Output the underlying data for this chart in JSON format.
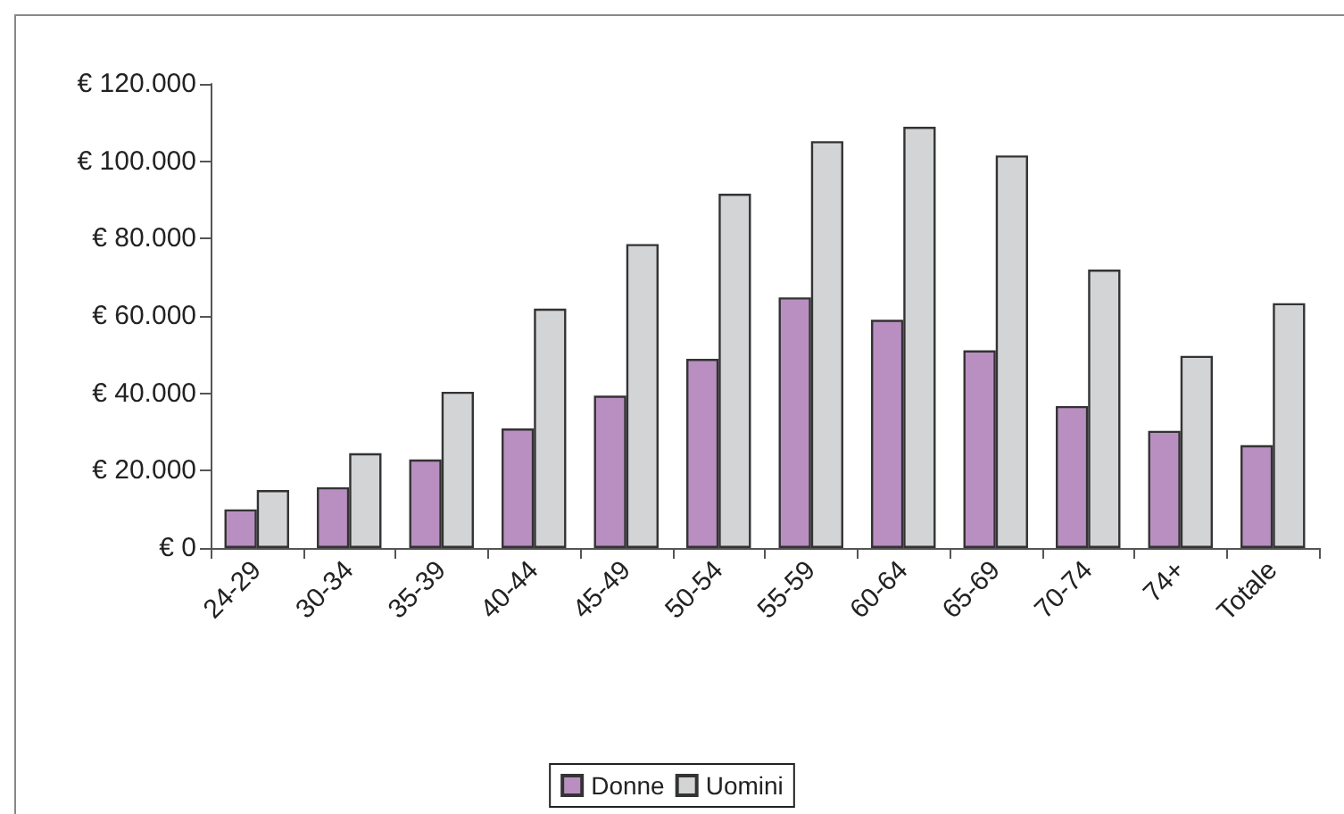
{
  "chart_data": {
    "type": "bar",
    "categories": [
      "24-29",
      "30-34",
      "35-39",
      "40-44",
      "45-49",
      "50-54",
      "55-59",
      "60-64",
      "65-69",
      "70-74",
      "74+",
      "Totale"
    ],
    "series": [
      {
        "name": "Donne",
        "color": "#b98fc2",
        "values": [
          10000,
          15700,
          22900,
          30900,
          39400,
          48900,
          64800,
          59000,
          51100,
          36700,
          30300,
          26600
        ]
      },
      {
        "name": "Uomini",
        "color": "#d3d4d6",
        "values": [
          15000,
          24500,
          40400,
          61900,
          78600,
          91600,
          105200,
          108900,
          101500,
          72000,
          49700,
          63300
        ]
      }
    ],
    "ylim": [
      0,
      120000
    ],
    "yticks": [
      {
        "value": 0,
        "label": "€ 0"
      },
      {
        "value": 20000,
        "label": "€ 20.000"
      },
      {
        "value": 40000,
        "label": "€ 40.000"
      },
      {
        "value": 60000,
        "label": "€ 60.000"
      },
      {
        "value": 80000,
        "label": "€ 80.000"
      },
      {
        "value": 100000,
        "label": "€ 100.000"
      },
      {
        "value": 120000,
        "label": "€ 120.000"
      }
    ],
    "grid": false,
    "legend": "bottom"
  }
}
